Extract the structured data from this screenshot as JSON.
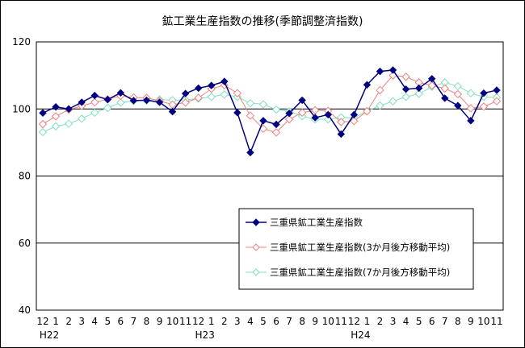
{
  "chart_data": {
    "type": "line",
    "title": "鉱工業生産指数の推移(季節調整済指数)",
    "xlabel": "",
    "ylabel": "",
    "ylim": [
      40,
      120
    ],
    "yticks": [
      "40",
      "60",
      "80",
      "100",
      "120"
    ],
    "gridlines": [
      60,
      80,
      100
    ],
    "categories": [
      "12",
      "1",
      "2",
      "3",
      "4",
      "5",
      "6",
      "7",
      "8",
      "9",
      "10",
      "11",
      "12",
      "1",
      "2",
      "3",
      "4",
      "5",
      "6",
      "7",
      "8",
      "9",
      "10",
      "11",
      "12",
      "1",
      "2",
      "3",
      "4",
      "5",
      "6",
      "7",
      "8",
      "9",
      "10",
      "11"
    ],
    "year_labels": [
      {
        "text": "H22",
        "index": 0
      },
      {
        "text": "H23",
        "index": 12
      },
      {
        "text": "H24",
        "index": 24
      }
    ],
    "legend_position": "lower-right",
    "series": [
      {
        "name": "三重県鉱工業生産指数",
        "color": "#000080",
        "marker": "filled-diamond",
        "values": [
          98.8,
          100.6,
          100.0,
          102.0,
          104.0,
          102.8,
          104.8,
          102.5,
          102.6,
          102.0,
          99.2,
          104.6,
          106.2,
          107.0,
          108.2,
          98.9,
          87.0,
          96.5,
          95.4,
          98.7,
          102.6,
          97.4,
          98.3,
          92.5,
          98.3,
          107.2,
          111.2,
          111.6,
          105.9,
          106.2,
          109.0,
          103.2,
          101.0,
          96.5,
          104.7,
          105.6
        ]
      },
      {
        "name": "三重県鉱工業生産指数(3か月後方移動平均)",
        "color": "#f08080",
        "marker": "open-diamond",
        "values": [
          95.5,
          97.8,
          99.8,
          100.9,
          102.0,
          102.9,
          103.9,
          103.4,
          103.3,
          102.4,
          101.3,
          101.9,
          103.3,
          106.0,
          107.1,
          104.7,
          98.0,
          94.1,
          93.0,
          96.9,
          98.9,
          99.6,
          99.4,
          96.1,
          96.4,
          99.3,
          105.6,
          110.0,
          109.6,
          107.9,
          107.0,
          106.1,
          104.4,
          100.2,
          100.7,
          102.3
        ]
      },
      {
        "name": "三重県鉱工業生産指数(7か月後方移動平均)",
        "color": "#80e0c0",
        "marker": "open-diamond",
        "values": [
          93.1,
          94.8,
          95.6,
          97.1,
          98.9,
          100.3,
          101.9,
          102.4,
          102.5,
          102.8,
          102.6,
          102.7,
          103.1,
          103.6,
          104.3,
          103.6,
          101.7,
          101.4,
          99.8,
          99.3,
          97.8,
          96.9,
          96.9,
          97.5,
          97.3,
          99.4,
          101.0,
          102.3,
          103.6,
          104.5,
          106.6,
          107.9,
          106.8,
          104.7,
          103.6,
          103.4
        ]
      }
    ]
  }
}
